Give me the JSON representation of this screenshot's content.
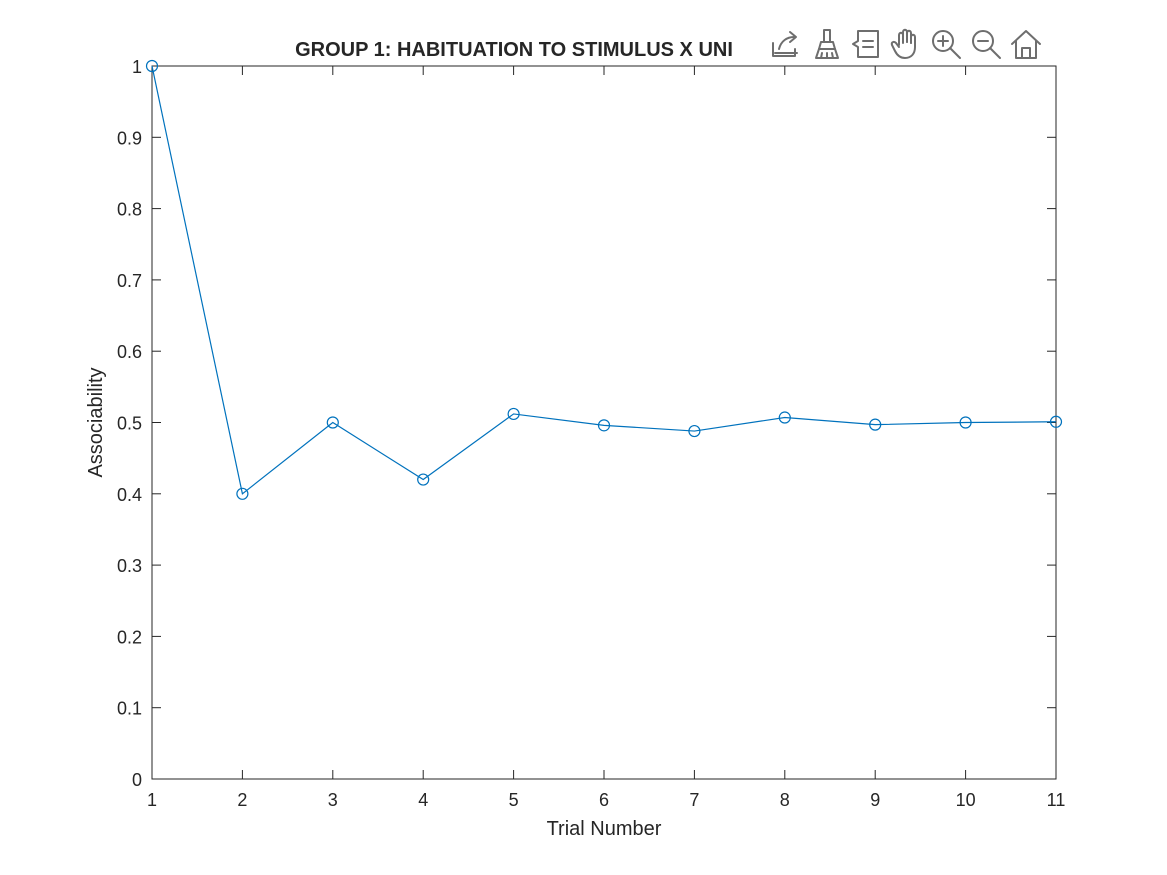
{
  "chart_data": {
    "type": "line",
    "title": "GROUP 1: HABITUATION TO STIMULUS X UNI",
    "xlabel": "Trial Number",
    "ylabel": "Associability",
    "xlim": [
      1,
      11
    ],
    "ylim": [
      0,
      1
    ],
    "xticks": [
      1,
      2,
      3,
      4,
      5,
      6,
      7,
      8,
      9,
      10,
      11
    ],
    "yticks": [
      0,
      0.1,
      0.2,
      0.3,
      0.4,
      0.5,
      0.6,
      0.7,
      0.8,
      0.9,
      1
    ],
    "grid": false,
    "marker": "circle",
    "series": [
      {
        "color": "#0072bd",
        "x": [
          1,
          2,
          3,
          4,
          5,
          6,
          7,
          8,
          9,
          10,
          11
        ],
        "y": [
          1.0,
          0.4,
          0.5,
          0.42,
          0.512,
          0.496,
          0.488,
          0.507,
          0.497,
          0.5,
          0.501
        ]
      }
    ]
  },
  "toolbar": {
    "icons": [
      "export-icon",
      "brush-icon",
      "datatip-icon",
      "pan-icon",
      "zoom-in-icon",
      "zoom-out-icon",
      "home-icon"
    ]
  }
}
